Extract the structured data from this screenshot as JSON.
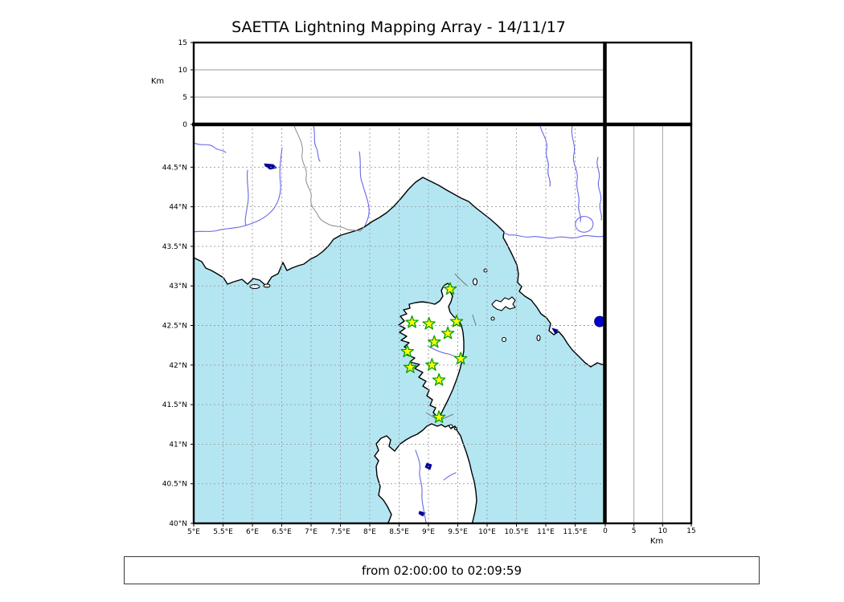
{
  "title": "SAETTA Lightning Mapping Array - 14/11/17",
  "caption": "from 02:00:00 to 02:09:59",
  "colors": {
    "sea": "#b4e6f2",
    "land": "#ffffff",
    "coastline": "#000000",
    "river": "#6767e8",
    "country_border": "#8a8a8a",
    "map_grid": "#9a9a9a",
    "panel_grid": "#9a9a9a",
    "lake": "#000099",
    "station_fill": "#ffff00",
    "station_edge": "#00a000",
    "source_fill": "#0000cc"
  },
  "map_panel": {
    "lon_ticks": [
      {
        "label": "5°E",
        "lon": 5
      },
      {
        "label": "5.5°E",
        "lon": 5.5
      },
      {
        "label": "6°E",
        "lon": 6
      },
      {
        "label": "6.5°E",
        "lon": 6.5
      },
      {
        "label": "7°E",
        "lon": 7
      },
      {
        "label": "7.5°E",
        "lon": 7.5
      },
      {
        "label": "8°E",
        "lon": 8
      },
      {
        "label": "8.5°E",
        "lon": 8.5
      },
      {
        "label": "9°E",
        "lon": 9
      },
      {
        "label": "9.5°E",
        "lon": 9.5
      },
      {
        "label": "10°E",
        "lon": 10
      },
      {
        "label": "10.5°E",
        "lon": 10.5
      },
      {
        "label": "11°E",
        "lon": 11
      },
      {
        "label": "11.5°E",
        "lon": 11.5
      }
    ],
    "lat_ticks": [
      {
        "label": "40°N",
        "lat": 40
      },
      {
        "label": "40.5°N",
        "lat": 40.5
      },
      {
        "label": "41°N",
        "lat": 41
      },
      {
        "label": "41.5°N",
        "lat": 41.5
      },
      {
        "label": "42°N",
        "lat": 42
      },
      {
        "label": "42.5°N",
        "lat": 42.5
      },
      {
        "label": "43°N",
        "lat": 43
      },
      {
        "label": "43.5°N",
        "lat": 43.5
      },
      {
        "label": "44°N",
        "lat": 44
      },
      {
        "label": "44.5°N",
        "lat": 44.5
      }
    ],
    "lon_range": [
      5,
      12
    ],
    "lat_range": [
      40,
      45.04
    ]
  },
  "altitude_axes": {
    "unit_label": "Km",
    "ticks": [
      {
        "label": "0",
        "km": 0
      },
      {
        "label": "5",
        "km": 5
      },
      {
        "label": "10",
        "km": 10
      },
      {
        "label": "15",
        "km": 15
      }
    ],
    "gridlines_km": [
      5,
      10
    ],
    "range_km": [
      0,
      15
    ]
  },
  "stations": [
    {
      "lon": 9.37,
      "lat": 42.96
    },
    {
      "lon": 8.72,
      "lat": 42.54
    },
    {
      "lon": 9.01,
      "lat": 42.52
    },
    {
      "lon": 9.48,
      "lat": 42.55
    },
    {
      "lon": 9.33,
      "lat": 42.4
    },
    {
      "lon": 9.1,
      "lat": 42.29
    },
    {
      "lon": 8.64,
      "lat": 42.17
    },
    {
      "lon": 9.55,
      "lat": 42.08
    },
    {
      "lon": 8.69,
      "lat": 41.97
    },
    {
      "lon": 9.06,
      "lat": 42.0
    },
    {
      "lon": 9.18,
      "lat": 41.81
    },
    {
      "lon": 9.18,
      "lat": 41.34
    }
  ],
  "sources": [
    {
      "lon": 11.92,
      "lat": 42.55,
      "alt_km": 0
    }
  ],
  "chart_data": {
    "type": "scatter",
    "title": "SAETTA Lightning Mapping Array - 14/11/17",
    "map_extent": {
      "lon": [
        5,
        12
      ],
      "lat": [
        40,
        45.04
      ]
    },
    "altitude_axis": {
      "label": "Km",
      "ticks": [
        0,
        5,
        10,
        15
      ],
      "range": [
        0,
        15
      ]
    },
    "grid": "dashed 0.5-degree graticule on map; solid lines at 5 and 10 km on altitude panels",
    "legend_position": "none",
    "series": [
      {
        "name": "LMA stations",
        "marker": "star",
        "fill": "#ffff00",
        "edge": "#00a000",
        "points_lon_lat": [
          [
            9.37,
            42.96
          ],
          [
            8.72,
            42.54
          ],
          [
            9.01,
            42.52
          ],
          [
            9.48,
            42.55
          ],
          [
            9.33,
            42.4
          ],
          [
            9.1,
            42.29
          ],
          [
            8.64,
            42.17
          ],
          [
            9.55,
            42.08
          ],
          [
            8.69,
            41.97
          ],
          [
            9.06,
            42.0
          ],
          [
            9.18,
            41.81
          ],
          [
            9.18,
            41.34
          ]
        ]
      },
      {
        "name": "lightning sources",
        "marker": "circle",
        "fill": "#0000cc",
        "points_lon_lat_alt": [
          [
            11.92,
            42.55,
            0
          ]
        ]
      }
    ]
  }
}
